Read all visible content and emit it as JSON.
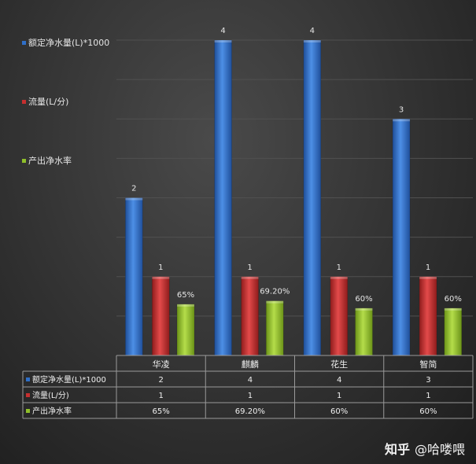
{
  "chart_data": {
    "type": "bar",
    "categories": [
      "华凌",
      "麒麟",
      "花生",
      "智简"
    ],
    "ylim": [
      0,
      4
    ],
    "grid": true,
    "legend_placement": "left",
    "series": [
      {
        "name": "额定净水量(L)*1000",
        "values": [
          2,
          4,
          4,
          3
        ],
        "labels": [
          "2",
          "4",
          "4",
          "3"
        ],
        "color": "#2f6fc7"
      },
      {
        "name": "流量(L/分)",
        "values": [
          1,
          1,
          1,
          1
        ],
        "labels": [
          "1",
          "1",
          "1",
          "1"
        ],
        "color": "#c62f2f"
      },
      {
        "name": "产出净水率",
        "values": [
          0.65,
          0.692,
          0.6,
          0.6
        ],
        "labels": [
          "65%",
          "69.20%",
          "60%",
          "60%"
        ],
        "color": "#8fbf2a"
      }
    ]
  },
  "watermark": {
    "logo": "知乎",
    "handle": "@哈喽喂"
  }
}
